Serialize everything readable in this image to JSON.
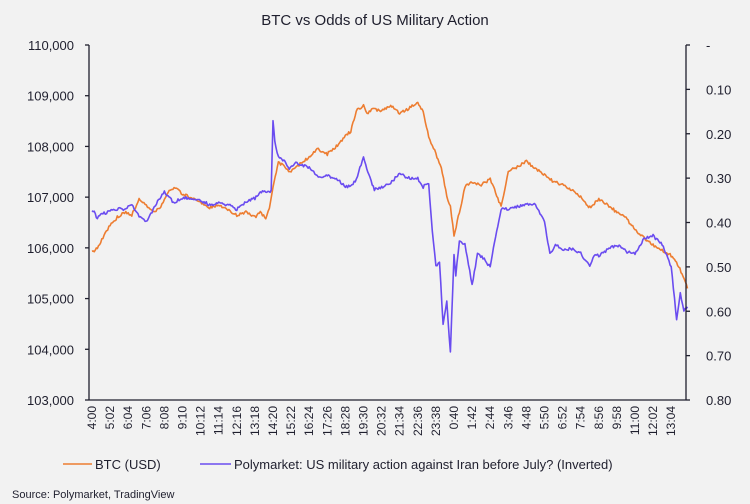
{
  "chart_data": {
    "type": "line",
    "title": "BTC vs Odds of US Military Action",
    "xlabel": "",
    "ylabel": "",
    "y2label": "",
    "x_ticks": [
      "4:00",
      "5:02",
      "6:04",
      "7:06",
      "8:08",
      "9:10",
      "10:12",
      "11:14",
      "12:16",
      "13:18",
      "14:20",
      "15:22",
      "16:24",
      "17:26",
      "18:28",
      "19:30",
      "20:32",
      "21:34",
      "22:36",
      "23:38",
      "0:40",
      "1:42",
      "2:44",
      "3:46",
      "4:48",
      "5:50",
      "6:52",
      "7:54",
      "8:56",
      "9:58",
      "11:00",
      "12:02",
      "13:04"
    ],
    "ylim": [
      103000,
      110000
    ],
    "y_ticks": [
      "103,000",
      "104,000",
      "105,000",
      "106,000",
      "107,000",
      "108,000",
      "109,000",
      "110,000"
    ],
    "y2lim": [
      0,
      0.8
    ],
    "y2_inverted": true,
    "y2_ticks": [
      "-",
      "0.10",
      "0.20",
      "0.30",
      "0.40",
      "0.50",
      "0.60",
      "0.70",
      "0.80"
    ],
    "grid": false,
    "legend_position": "bottom",
    "series": [
      {
        "name": "BTC (USD)",
        "axis": "left",
        "color": "#ed7d31",
        "x": [
          0,
          0.3,
          0.6,
          1,
          1.4,
          1.8,
          2.2,
          2.6,
          3,
          3.4,
          3.8,
          4.2,
          4.6,
          5,
          5.5,
          6,
          6.5,
          7,
          7.5,
          8,
          8.5,
          9,
          9.3,
          9.6,
          9.8,
          10,
          10.3,
          10.6,
          11,
          11.5,
          12,
          12.5,
          13,
          13.5,
          14,
          14.3,
          14.6,
          15,
          15.2,
          15.5,
          16,
          16.5,
          17,
          17.5,
          18,
          18.3,
          18.6,
          19,
          19.3,
          19.6,
          19.8,
          20,
          20.3,
          20.6,
          21,
          21.5,
          22,
          22.3,
          22.6,
          23,
          23.5,
          24,
          24.5,
          25,
          25.5,
          26,
          26.5,
          27,
          27.5,
          28,
          28.5,
          29,
          29.5,
          30,
          30.5,
          31,
          31.5,
          32,
          32.3,
          32.6,
          32.9
        ],
        "values": [
          105900,
          106000,
          106200,
          106450,
          106600,
          106700,
          106650,
          106950,
          106850,
          106700,
          106800,
          107100,
          107200,
          107050,
          107000,
          106900,
          106800,
          106850,
          106750,
          106650,
          106700,
          106600,
          106700,
          106600,
          106800,
          107200,
          107700,
          107600,
          107500,
          107650,
          107800,
          107950,
          107850,
          108000,
          108200,
          108300,
          108700,
          108800,
          108650,
          108750,
          108700,
          108800,
          108650,
          108750,
          108850,
          108700,
          108200,
          107850,
          107600,
          107000,
          106800,
          106250,
          106700,
          107200,
          107300,
          107250,
          107350,
          107100,
          106800,
          107500,
          107600,
          107700,
          107550,
          107450,
          107300,
          107250,
          107150,
          107000,
          106800,
          106950,
          106850,
          106700,
          106600,
          106350,
          106200,
          106050,
          105950,
          105850,
          105700,
          105500,
          105200
        ]
      },
      {
        "name": "Polymarket: US military action against Iran before July? (Inverted)",
        "axis": "right",
        "color": "#6a4cf0",
        "x": [
          0,
          0.3,
          0.6,
          1,
          1.4,
          1.8,
          2.2,
          2.6,
          3,
          3.5,
          4,
          4.5,
          5,
          5.5,
          6,
          6.5,
          7,
          7.5,
          8,
          8.5,
          9,
          9.3,
          9.6,
          9.9,
          10,
          10.1,
          10.3,
          10.6,
          10.9,
          11.2,
          11.5,
          12,
          12.5,
          13,
          13.5,
          14,
          14.3,
          14.6,
          15,
          15.3,
          15.6,
          16,
          16.5,
          17,
          17.5,
          18,
          18.3,
          18.6,
          18.8,
          19,
          19.2,
          19.4,
          19.6,
          19.8,
          20,
          20.1,
          20.3,
          20.6,
          21,
          21.3,
          21.6,
          22,
          22.3,
          22.6,
          23,
          23.5,
          24,
          24.5,
          25,
          25.3,
          25.6,
          26,
          26.5,
          27,
          27.5,
          27.8,
          28,
          28.5,
          29,
          29.5,
          30,
          30.5,
          31,
          31.5,
          32,
          32.3,
          32.5,
          32.7,
          32.9
        ],
        "values": [
          0.37,
          0.39,
          0.38,
          0.375,
          0.37,
          0.37,
          0.36,
          0.385,
          0.4,
          0.36,
          0.33,
          0.355,
          0.345,
          0.345,
          0.35,
          0.36,
          0.355,
          0.36,
          0.37,
          0.355,
          0.345,
          0.33,
          0.33,
          0.33,
          0.17,
          0.22,
          0.25,
          0.26,
          0.28,
          0.265,
          0.27,
          0.275,
          0.3,
          0.295,
          0.3,
          0.32,
          0.315,
          0.305,
          0.25,
          0.295,
          0.325,
          0.32,
          0.31,
          0.29,
          0.3,
          0.3,
          0.32,
          0.31,
          0.42,
          0.5,
          0.49,
          0.63,
          0.58,
          0.695,
          0.47,
          0.52,
          0.44,
          0.45,
          0.54,
          0.47,
          0.48,
          0.5,
          0.43,
          0.37,
          0.37,
          0.365,
          0.36,
          0.36,
          0.4,
          0.47,
          0.45,
          0.46,
          0.46,
          0.47,
          0.5,
          0.47,
          0.475,
          0.46,
          0.45,
          0.465,
          0.47,
          0.435,
          0.43,
          0.45,
          0.5,
          0.62,
          0.56,
          0.6,
          0.59
        ]
      }
    ]
  },
  "source": "Source: Polymarket, TradingView"
}
